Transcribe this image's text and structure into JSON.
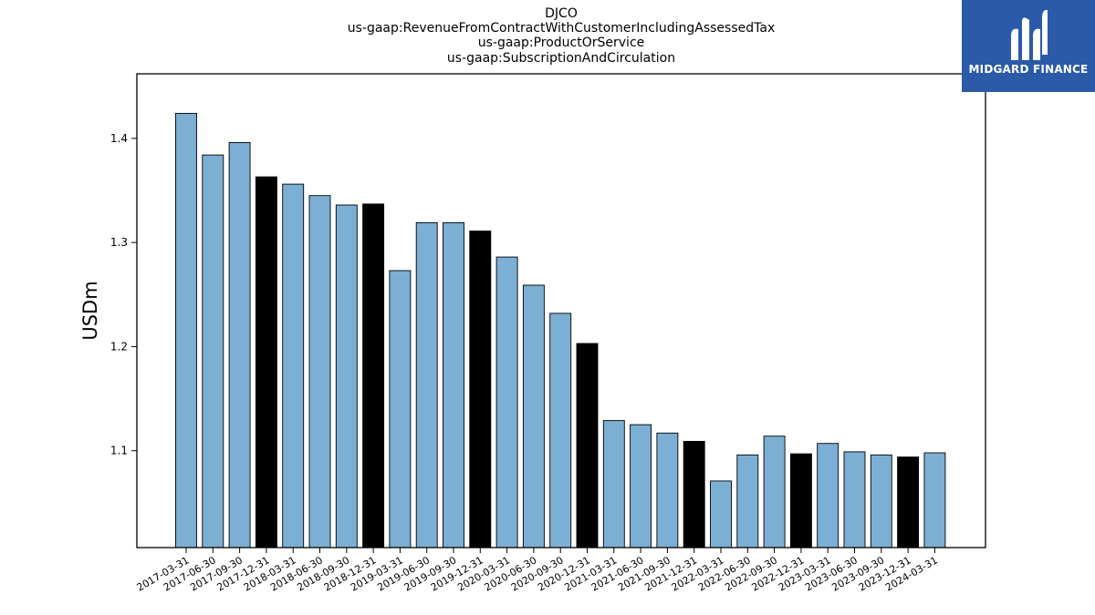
{
  "logo": {
    "text": "MIDGARD FINANCE",
    "background": "#2a5aa8"
  },
  "colors": {
    "regular_bar": "#7bafd4",
    "year_end_bar": "#000000",
    "edge": "#000000"
  },
  "chart_data": {
    "type": "bar",
    "title": [
      "DJCO",
      "us-gaap:RevenueFromContractWithCustomerIncludingAssessedTax",
      "us-gaap:ProductOrService",
      "us-gaap:SubscriptionAndCirculation"
    ],
    "xlabel": "",
    "ylabel": "USDm",
    "ylim": [
      1.007,
      1.462
    ],
    "yticks": [
      1.1,
      1.2,
      1.3,
      1.4
    ],
    "ytick_labels": [
      "1.1",
      "1.2",
      "1.3",
      "1.4"
    ],
    "grid": false,
    "categories": [
      "2017-03-31",
      "2017-06-30",
      "2017-09-30",
      "2017-12-31",
      "2018-03-31",
      "2018-06-30",
      "2018-09-30",
      "2018-12-31",
      "2019-03-31",
      "2019-06-30",
      "2019-09-30",
      "2019-12-31",
      "2020-03-31",
      "2020-06-30",
      "2020-09-30",
      "2020-12-31",
      "2021-03-31",
      "2021-06-30",
      "2021-09-30",
      "2021-12-31",
      "2022-03-31",
      "2022-06-30",
      "2022-09-30",
      "2022-12-31",
      "2023-03-31",
      "2023-06-30",
      "2023-09-30",
      "2023-12-31",
      "2024-03-31"
    ],
    "values": [
      1.424,
      1.384,
      1.396,
      1.363,
      1.356,
      1.345,
      1.336,
      1.337,
      1.273,
      1.319,
      1.319,
      1.311,
      1.286,
      1.259,
      1.232,
      1.203,
      1.129,
      1.125,
      1.117,
      1.109,
      1.071,
      1.096,
      1.114,
      1.097,
      1.107,
      1.099,
      1.096,
      1.094,
      1.098
    ],
    "highlight": [
      false,
      false,
      false,
      true,
      false,
      false,
      false,
      true,
      false,
      false,
      false,
      true,
      false,
      false,
      false,
      true,
      false,
      false,
      false,
      true,
      false,
      false,
      false,
      true,
      false,
      false,
      false,
      true,
      false
    ]
  }
}
